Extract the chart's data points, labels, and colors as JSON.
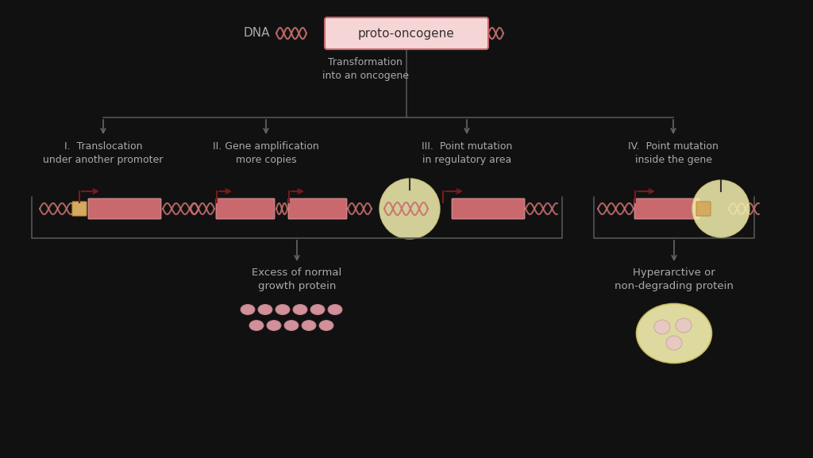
{
  "bg_color": "#111111",
  "title_dna_text": "DNA",
  "proto_oncogene_label": "proto-oncogene",
  "transformation_text": "Transformation\ninto an oncogene",
  "section_titles": [
    "I.  Translocation\nunder another promoter",
    "II. Gene amplification\nmore copies",
    "III.  Point mutation\nin regulatory area",
    "IV.  Point mutation\ninside the gene"
  ],
  "result_labels": [
    "Excess of normal\ngrowth protein",
    "Hyperarctive or\nnon-degrading protein"
  ],
  "gene_color": "#c9696e",
  "promoter_color": "#d4aa60",
  "dna_color": "#c97070",
  "text_color_light": "#cccccc",
  "text_color_dark": "#333333",
  "arrow_color": "#7a1a1a",
  "box_outline_color": "#c9696e",
  "box_fill_top": "#f5d5d5",
  "cell_color": "#f5f0b0",
  "cell_inner_color": "#e8d888",
  "protein_color": "#e8a0a8",
  "protein_outline": "#c08090",
  "bracket_color": "#555555",
  "line_color": "#555555"
}
